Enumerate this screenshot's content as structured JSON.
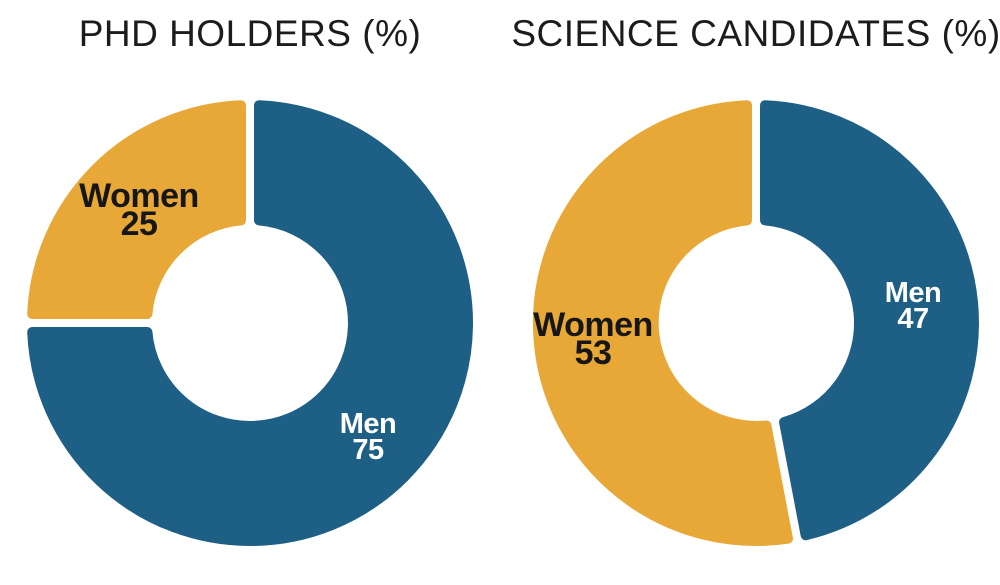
{
  "page": {
    "background_color": "#FFFFFF"
  },
  "chart_data": [
    {
      "type": "pie",
      "subtype": "donut",
      "title": "PHD HOLDERS (%)",
      "title_color": "#1C1C1C",
      "start_angle_deg": 0,
      "direction": "clockwise",
      "legend": "none",
      "slices": [
        {
          "label": "Men",
          "value": 75,
          "color": "#1E5F85",
          "label_color": "#FFFFFF"
        },
        {
          "label": "Women",
          "value": 25,
          "color": "#E8A838",
          "label_color": "#161616"
        }
      ]
    },
    {
      "type": "pie",
      "subtype": "donut",
      "title": "SCIENCE CANDIDATES (%)",
      "title_color": "#1C1C1C",
      "start_angle_deg": 0,
      "direction": "clockwise",
      "legend": "none",
      "slices": [
        {
          "label": "Men",
          "value": 47,
          "color": "#1E5F85",
          "label_color": "#FFFFFF"
        },
        {
          "label": "Women",
          "value": 53,
          "color": "#E8A838",
          "label_color": "#161616"
        }
      ]
    }
  ]
}
